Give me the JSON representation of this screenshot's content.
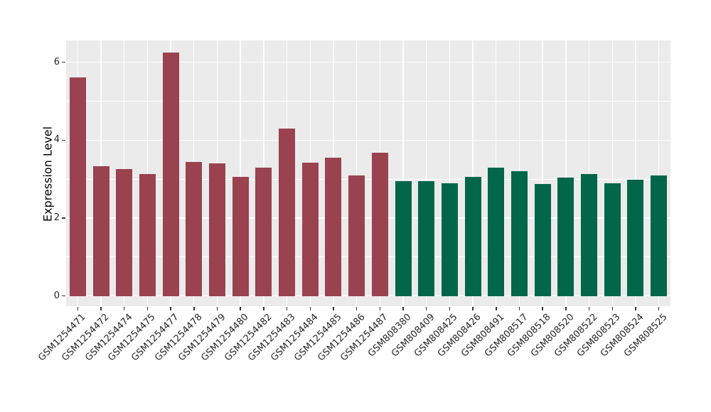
{
  "chart_data": {
    "type": "bar",
    "title": "",
    "ylabel": "Expression Level",
    "xlabel": "",
    "yticks": [
      0,
      2,
      4,
      6
    ],
    "yticks_minor": [
      1,
      3,
      5
    ],
    "ylim": [
      -0.26,
      6.56
    ],
    "grid": "white major+minor horizontal lines and major vertical lines on gray panel",
    "legend": false,
    "categories": [
      "GSM1254471",
      "GSM1254472",
      "GSM1254474",
      "GSM1254475",
      "GSM1254477",
      "GSM1254478",
      "GSM1254479",
      "GSM1254480",
      "GSM1254482",
      "GSM1254483",
      "GSM1254484",
      "GSM1254485",
      "GSM1254486",
      "GSM1254487",
      "GSM808380",
      "GSM808409",
      "GSM808425",
      "GSM808426",
      "GSM808491",
      "GSM808517",
      "GSM808518",
      "GSM808520",
      "GSM808522",
      "GSM808523",
      "GSM808524",
      "GSM808525"
    ],
    "series": [
      {
        "color": "#9A4250",
        "categories": [
          "GSM1254471",
          "GSM1254472",
          "GSM1254474",
          "GSM1254475",
          "GSM1254477",
          "GSM1254478",
          "GSM1254479",
          "GSM1254480",
          "GSM1254482",
          "GSM1254483",
          "GSM1254484",
          "GSM1254485",
          "GSM1254486",
          "GSM1254487"
        ],
        "values": [
          5.61,
          3.34,
          3.26,
          3.14,
          6.25,
          3.45,
          3.4,
          3.06,
          3.3,
          4.3,
          3.42,
          3.56,
          3.09,
          3.67
        ]
      },
      {
        "color": "#026649",
        "categories": [
          "GSM808380",
          "GSM808409",
          "GSM808425",
          "GSM808426",
          "GSM808491",
          "GSM808517",
          "GSM808518",
          "GSM808520",
          "GSM808522",
          "GSM808523",
          "GSM808524",
          "GSM808525"
        ],
        "values": [
          2.95,
          2.95,
          2.89,
          3.06,
          3.3,
          3.21,
          2.88,
          3.04,
          3.14,
          2.89,
          2.99,
          3.09
        ]
      }
    ],
    "colors": {
      "panel_bg": "#EBEBEB",
      "grid": "#FFFFFF",
      "bar_group_1": "#9A4250",
      "bar_group_2": "#026649",
      "axis_text": "#262626",
      "tick_mark": "#333333"
    }
  }
}
